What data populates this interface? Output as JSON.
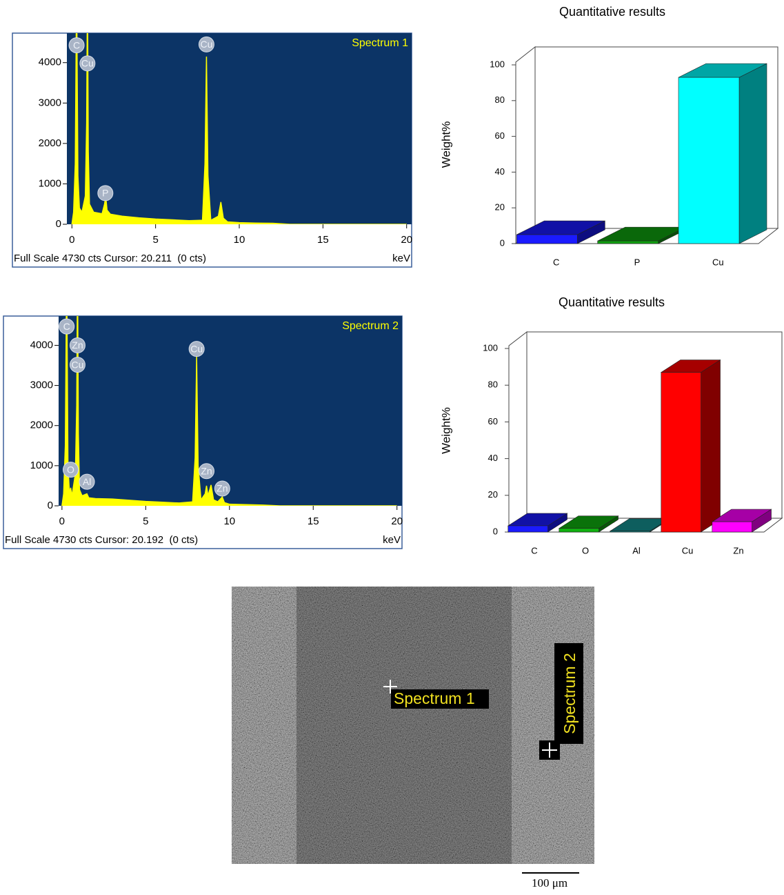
{
  "chart_data": [
    {
      "type": "line",
      "title": "Spectrum 1",
      "footer": "Full Scale 4730 cts Cursor: 20.211  (0 cts)",
      "xlabel": "keV",
      "x": [
        0,
        0.1,
        0.2,
        0.28,
        0.36,
        0.45,
        0.6,
        0.8,
        0.88,
        0.93,
        0.98,
        1.05,
        1.3,
        1.8,
        1.95,
        2.02,
        2.1,
        2.3,
        3,
        4,
        5,
        6,
        7,
        7.8,
        7.95,
        8.04,
        8.13,
        8.3,
        8.75,
        8.9,
        9.05,
        9.3,
        10,
        11,
        12,
        12.6,
        13,
        15,
        20
      ],
      "values": [
        0,
        300,
        1500,
        6000,
        1200,
        400,
        300,
        700,
        2500,
        6000,
        1800,
        500,
        300,
        260,
        500,
        700,
        350,
        250,
        200,
        160,
        130,
        110,
        90,
        100,
        1500,
        4150,
        1200,
        100,
        200,
        550,
        150,
        60,
        40,
        30,
        25,
        10,
        0,
        0,
        0
      ],
      "color": "#ffff00",
      "plot_background": "#0c3466",
      "xlim": [
        -0.3,
        20.3
      ],
      "ylim": [
        0,
        4730
      ],
      "xticks": [
        0,
        5,
        10,
        15,
        20
      ],
      "yticks": [
        0,
        1000,
        2000,
        3000,
        4000
      ],
      "annotations": [
        {
          "text": "C",
          "x": 0.28,
          "y": 4430
        },
        {
          "text": "Cu",
          "x": 0.93,
          "y": 3980
        },
        {
          "text": "P",
          "x": 2.0,
          "y": 770
        },
        {
          "text": "Cu",
          "x": 8.04,
          "y": 4450
        }
      ]
    },
    {
      "type": "bar",
      "title": "Quantitative results",
      "ylabel": "Weight%",
      "categories": [
        "C",
        "P",
        "Cu"
      ],
      "values": [
        5,
        1.5,
        93
      ],
      "colors": [
        "#1a1aff",
        "#10a010",
        "#00ffff"
      ],
      "ylim": [
        0,
        100
      ],
      "yticks": [
        0,
        20,
        40,
        60,
        80,
        100
      ]
    },
    {
      "type": "line",
      "title": "Spectrum 2",
      "footer": "Full Scale 4730 cts Cursor: 20.192  (0 cts)",
      "xlabel": "keV",
      "x": [
        0,
        0.1,
        0.2,
        0.28,
        0.36,
        0.45,
        0.52,
        0.6,
        0.8,
        0.88,
        0.93,
        0.98,
        1.05,
        1.2,
        1.49,
        1.6,
        2,
        3,
        4,
        5,
        6,
        7,
        7.8,
        7.95,
        8.04,
        8.13,
        8.3,
        8.55,
        8.63,
        8.72,
        8.9,
        9.05,
        9.3,
        9.57,
        9.7,
        10,
        11,
        12,
        13,
        15,
        20
      ],
      "values": [
        0,
        300,
        1500,
        6000,
        1000,
        300,
        450,
        250,
        800,
        2500,
        6000,
        1800,
        400,
        250,
        300,
        200,
        180,
        170,
        140,
        110,
        90,
        70,
        100,
        1200,
        3720,
        1000,
        150,
        300,
        500,
        250,
        520,
        150,
        100,
        220,
        80,
        40,
        30,
        20,
        0,
        0,
        0
      ],
      "color": "#ffff00",
      "plot_background": "#0c3466",
      "xlim": [
        -0.2,
        20.3
      ],
      "ylim": [
        0,
        4730
      ],
      "xticks": [
        0,
        5,
        10,
        15,
        20
      ],
      "yticks": [
        0,
        1000,
        2000,
        3000,
        4000
      ],
      "annotations": [
        {
          "text": "C",
          "x": 0.28,
          "y": 4470
        },
        {
          "text": "Zn",
          "x": 0.93,
          "y": 4000
        },
        {
          "text": "Cu",
          "x": 0.93,
          "y": 3515
        },
        {
          "text": "O",
          "x": 0.52,
          "y": 900
        },
        {
          "text": "Al",
          "x": 1.49,
          "y": 600
        },
        {
          "text": "Cu",
          "x": 8.04,
          "y": 3910
        },
        {
          "text": "Zn",
          "x": 8.63,
          "y": 865
        },
        {
          "text": "Zn",
          "x": 9.57,
          "y": 430
        }
      ]
    },
    {
      "type": "bar",
      "title": "Quantitative results",
      "ylabel": "Weight%",
      "categories": [
        "C",
        "O",
        "Al",
        "Cu",
        "Zn"
      ],
      "values": [
        3.4,
        2,
        0.5,
        87,
        5.6
      ],
      "colors": [
        "#1a1aff",
        "#10b010",
        "#169090",
        "#ff0000",
        "#ff00ff"
      ],
      "ylim": [
        0,
        100
      ],
      "yticks": [
        0,
        20,
        40,
        60,
        80,
        100
      ]
    }
  ],
  "image": {
    "labels": [
      "Spectrum 1",
      "Spectrum 2"
    ],
    "scale_bar": "100 μm"
  }
}
